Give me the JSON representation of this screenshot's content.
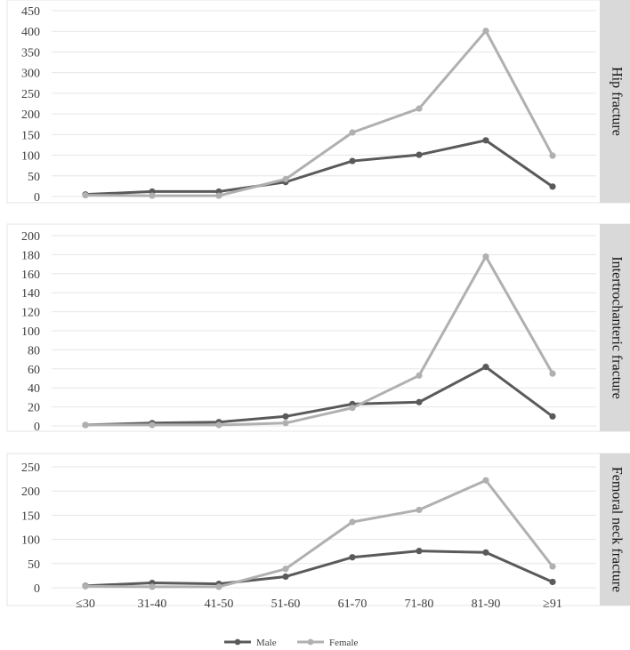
{
  "chart_data": [
    {
      "type": "line",
      "title": "Hip fracture",
      "categories": [
        "≤30",
        "31-40",
        "41-50",
        "51-60",
        "61-70",
        "71-80",
        "81-90",
        "≥91"
      ],
      "ylim": [
        0,
        450
      ],
      "yticks": [
        0,
        50,
        100,
        150,
        200,
        250,
        300,
        350,
        400,
        450
      ],
      "grid": true,
      "series": [
        {
          "name": "Male",
          "color": "#5a5a5a",
          "values": [
            5,
            12,
            12,
            35,
            86,
            101,
            136,
            24
          ]
        },
        {
          "name": "Female",
          "color": "#b0b0b0",
          "values": [
            3,
            2,
            2,
            42,
            155,
            213,
            401,
            99
          ]
        }
      ]
    },
    {
      "type": "line",
      "title": "Intertrochanteric fracture",
      "categories": [
        "≤30",
        "31-40",
        "41-50",
        "51-60",
        "61-70",
        "71-80",
        "81-90",
        "≥91"
      ],
      "ylim": [
        0,
        200
      ],
      "yticks": [
        0,
        20,
        40,
        60,
        80,
        100,
        120,
        140,
        160,
        180,
        200
      ],
      "grid": true,
      "series": [
        {
          "name": "Male",
          "color": "#5a5a5a",
          "values": [
            1,
            3,
            4,
            10,
            23,
            25,
            62,
            10
          ]
        },
        {
          "name": "Female",
          "color": "#b0b0b0",
          "values": [
            1,
            1,
            1,
            3,
            19,
            53,
            178,
            55
          ]
        }
      ]
    },
    {
      "type": "line",
      "title": "Femoral neck fracture",
      "categories": [
        "≤30",
        "31-40",
        "41-50",
        "51-60",
        "61-70",
        "71-80",
        "81-90",
        "≥91"
      ],
      "ylim": [
        0,
        250
      ],
      "yticks": [
        0,
        50,
        100,
        150,
        200,
        250
      ],
      "grid": true,
      "series": [
        {
          "name": "Male",
          "color": "#5a5a5a",
          "values": [
            4,
            10,
            8,
            23,
            63,
            76,
            73,
            12
          ]
        },
        {
          "name": "Female",
          "color": "#b0b0b0",
          "values": [
            3,
            2,
            2,
            39,
            136,
            161,
            222,
            44
          ]
        }
      ]
    }
  ],
  "legend": [
    {
      "name": "Male",
      "color": "#5a5a5a"
    },
    {
      "name": "Female",
      "color": "#b0b0b0"
    }
  ]
}
